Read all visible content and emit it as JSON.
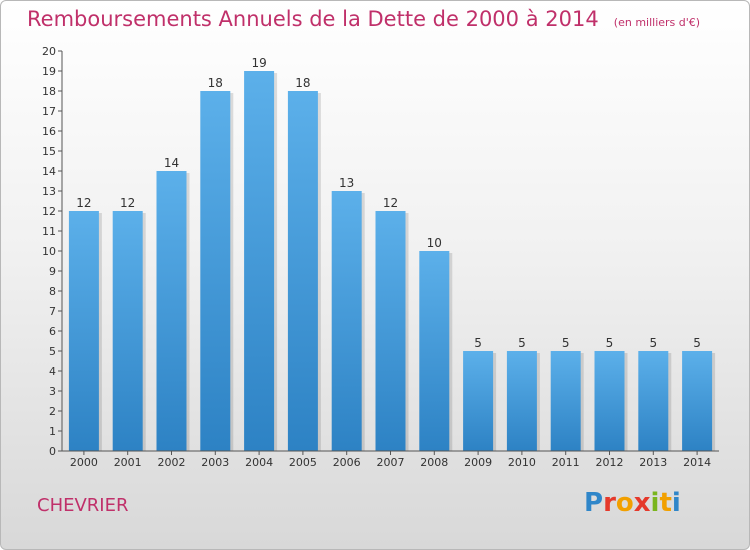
{
  "header": {
    "title": "Remboursements Annuels de la Dette de 2000 à 2014",
    "subtitle": "(en milliers d'€)"
  },
  "footer": {
    "commune": "CHEVRIER",
    "logo": "Proxiti"
  },
  "colors": {
    "title": "#c0306a",
    "bar_top": "#5cb0ea",
    "bar_bottom": "#2d82c4"
  },
  "chart_data": {
    "type": "bar",
    "title": "Remboursements Annuels de la Dette de 2000 à 2014",
    "subtitle": "(en milliers d'€)",
    "categories": [
      "2000",
      "2001",
      "2002",
      "2003",
      "2004",
      "2005",
      "2006",
      "2007",
      "2008",
      "2009",
      "2010",
      "2011",
      "2012",
      "2013",
      "2014"
    ],
    "values": [
      12,
      12,
      14,
      18,
      19,
      18,
      13,
      12,
      10,
      5,
      5,
      5,
      5,
      5,
      5
    ],
    "ylim": [
      0,
      20
    ],
    "yticks": [
      0,
      1,
      2,
      3,
      4,
      5,
      6,
      7,
      8,
      9,
      10,
      11,
      12,
      13,
      14,
      15,
      16,
      17,
      18,
      19,
      20
    ],
    "grid": false,
    "data_labels": true
  }
}
